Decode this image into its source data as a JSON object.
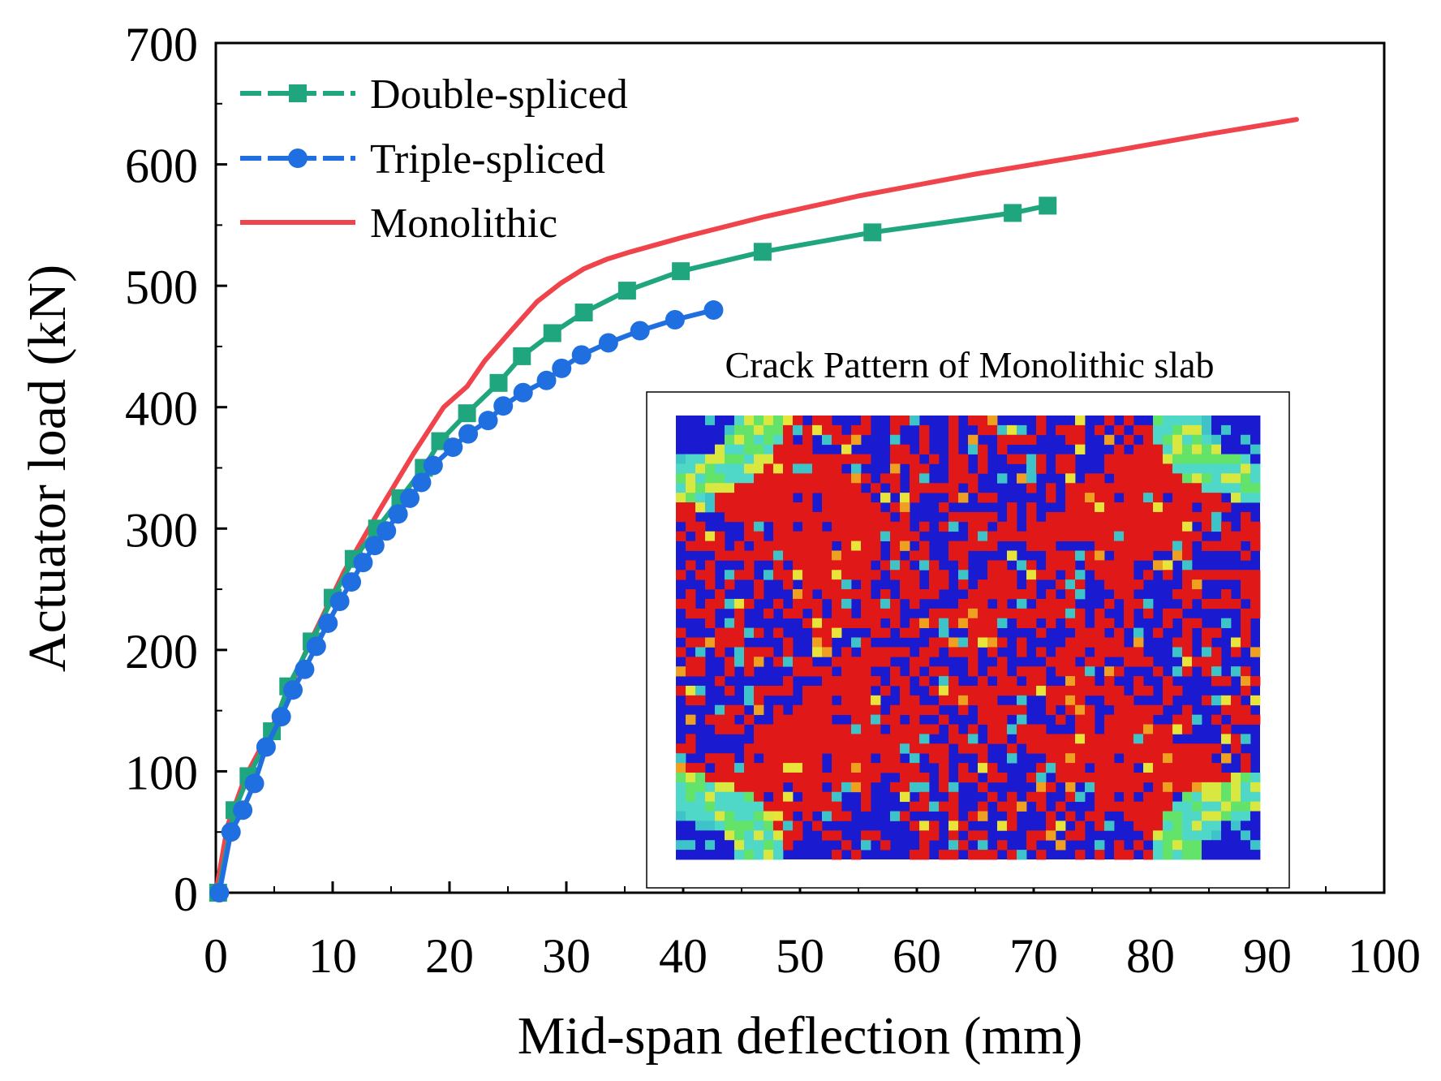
{
  "chart_data": {
    "type": "line",
    "xlabel": "Mid-span deflection (mm)",
    "ylabel": "Actuator load (kN)",
    "xlim": [
      0,
      100
    ],
    "ylim": [
      0,
      700
    ],
    "xticks": [
      0,
      10,
      20,
      30,
      40,
      50,
      60,
      70,
      80,
      90,
      100
    ],
    "yticks": [
      0,
      100,
      200,
      300,
      400,
      500,
      600,
      700
    ],
    "grid": false,
    "legend_position": "top-left",
    "series": [
      {
        "name": "Double-spliced",
        "color": "#1fa67f",
        "marker": "square",
        "x": [
          0.2,
          1.6,
          2.8,
          4.8,
          6.2,
          8.2,
          10.0,
          11.8,
          13.8,
          15.8,
          17.8,
          19.2,
          21.5,
          24.2,
          26.2,
          28.8,
          31.5,
          35.2,
          39.8,
          46.8,
          56.2,
          68.2,
          71.2
        ],
        "y": [
          0,
          68,
          96,
          133,
          170,
          207,
          243,
          275,
          300,
          325,
          350,
          372,
          395,
          420,
          442,
          461,
          478,
          496,
          512,
          528,
          544,
          560,
          566
        ]
      },
      {
        "name": "Triple-spliced",
        "color": "#1f6fe0",
        "marker": "circle",
        "x": [
          0.3,
          1.3,
          2.3,
          3.3,
          4.3,
          5.6,
          6.6,
          7.6,
          8.6,
          9.6,
          10.6,
          11.6,
          12.6,
          13.6,
          14.6,
          15.6,
          16.6,
          17.6,
          18.6,
          20.3,
          21.6,
          23.3,
          24.6,
          26.3,
          28.3,
          29.6,
          31.3,
          33.6,
          36.3,
          39.3,
          42.6
        ],
        "y": [
          0,
          50,
          68,
          90,
          120,
          145,
          167,
          184,
          203,
          222,
          240,
          256,
          272,
          286,
          298,
          312,
          325,
          338,
          352,
          367,
          378,
          389,
          401,
          412,
          422,
          432,
          443,
          453,
          463,
          472,
          480
        ]
      },
      {
        "name": "Monolithic",
        "color": "#f0444c",
        "marker": "none",
        "x": [
          0,
          1,
          2.5,
          5,
          8,
          11,
          14,
          17,
          19.5,
          21.5,
          23,
          25,
          27.5,
          29.5,
          31.5,
          33.5,
          35.5,
          40,
          47,
          55,
          65,
          75,
          85,
          92.5
        ],
        "y": [
          0,
          55,
          95,
          140,
          205,
          265,
          315,
          363,
          400,
          417,
          438,
          460,
          487,
          502,
          514,
          522,
          528,
          540,
          557,
          574,
          592,
          608,
          625,
          637
        ]
      }
    ],
    "inset": {
      "title": "Crack Pattern of Monolithic slab"
    }
  }
}
